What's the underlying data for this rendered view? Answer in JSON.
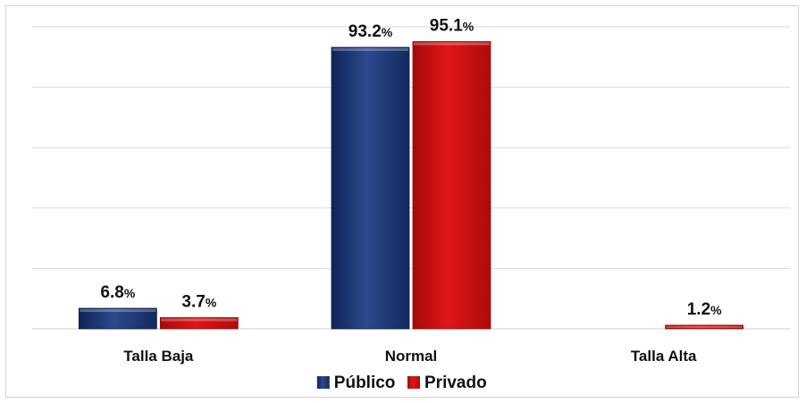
{
  "chart_data": {
    "type": "bar",
    "categories": [
      "Talla Baja",
      "Normal",
      "Talla Alta"
    ],
    "series": [
      {
        "name": "Público",
        "values": [
          6.8,
          93.2,
          null
        ],
        "labels": [
          "6.8%",
          "93.2%",
          ""
        ],
        "color": "#1f3a78"
      },
      {
        "name": "Privado",
        "values": [
          3.7,
          95.1,
          1.2
        ],
        "labels": [
          "3.7%",
          "95.1%",
          "1.2%"
        ],
        "color": "#cc0d0d"
      }
    ],
    "title": "",
    "xlabel": "",
    "ylabel": "",
    "ylim": [
      0,
      100
    ],
    "grid": true,
    "legend_position": "bottom"
  }
}
